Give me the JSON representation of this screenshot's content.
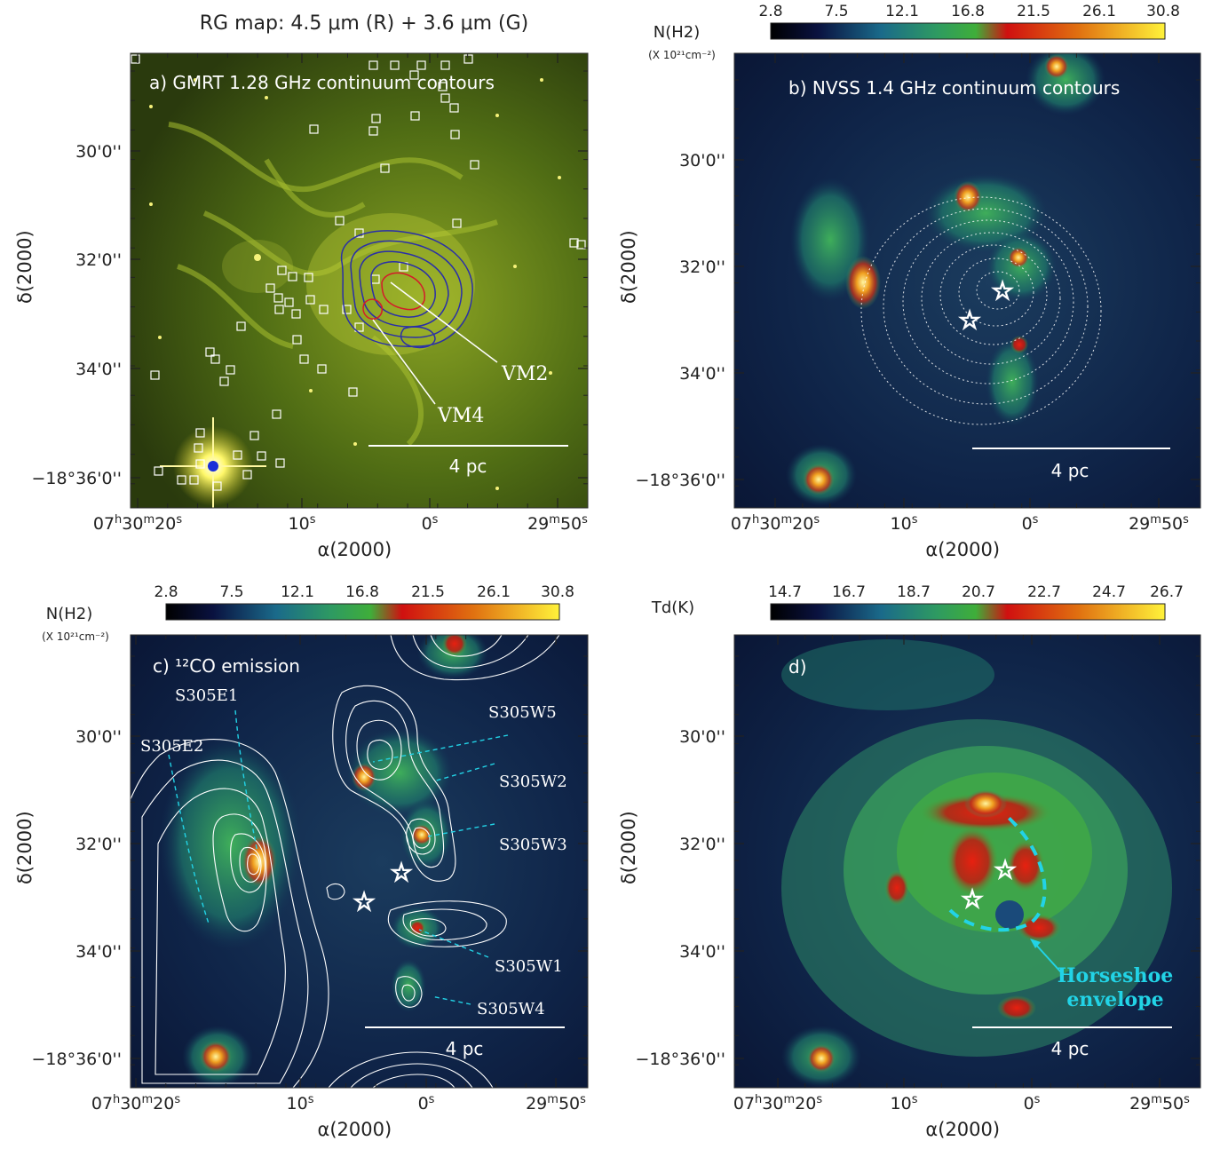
{
  "colors": {
    "green_map": "#5f7d14",
    "blue_map": "#0d1a3a",
    "contour_blue": "#2a2fa8",
    "contour_red": "#d41a2a",
    "cyan": "#22d3e6",
    "white": "#ffffff"
  },
  "top_title": "RG map: 4.5 μm (R) + 3.6 μm (G)",
  "axis_labels": {
    "ra": "α(2000)",
    "dec": "δ(2000)",
    "ra_ticks": [
      "07h30m20s",
      "10s",
      "0s",
      "29m50s"
    ],
    "dec_ticks": [
      "30'0''",
      "32'0''",
      "34'0''",
      "−18°36'0''"
    ]
  },
  "scale_bar": "4 pc",
  "panel_a": {
    "label": "a)  GMRT 1.28 GHz continuum contours",
    "markers": [
      "VM2",
      "VM4"
    ]
  },
  "panel_b": {
    "label": "b)  NVSS 1.4 GHz continuum contours",
    "colorbar_title": "N(H2)",
    "colorbar_unit": "(X 10²¹cm⁻²)",
    "colorbar_ticks": [
      "2.8",
      "7.5",
      "12.1",
      "16.8",
      "21.5",
      "26.1",
      "30.8"
    ]
  },
  "panel_c": {
    "label": "c)  ¹²CO emission",
    "colorbar_title": "N(H2)",
    "colorbar_unit": "(X 10²¹cm⁻²)",
    "colorbar_ticks": [
      "2.8",
      "7.5",
      "12.1",
      "16.8",
      "21.5",
      "26.1",
      "30.8"
    ],
    "clumps": [
      "S305E1",
      "S305E2",
      "S305W5",
      "S305W2",
      "S305W3",
      "S305W1",
      "S305W4"
    ]
  },
  "panel_d": {
    "label": "d)",
    "colorbar_title": "Td(K)",
    "colorbar_ticks": [
      "14.7",
      "16.7",
      "18.7",
      "20.7",
      "22.7",
      "24.7",
      "26.7"
    ],
    "annotation_line1": "Horseshoe",
    "annotation_line2": "envelope"
  }
}
